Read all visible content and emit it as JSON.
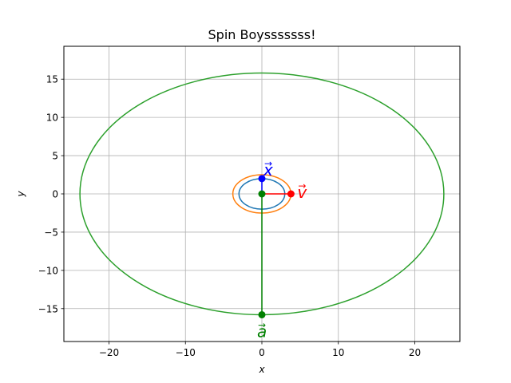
{
  "chart_data": {
    "type": "line",
    "title": "Spin Boysssssss!",
    "xlabel": "x",
    "ylabel": "y",
    "xlim": [
      -25.9,
      25.9
    ],
    "ylim": [
      -19.3,
      19.3
    ],
    "xticks": [
      -20,
      -10,
      0,
      10,
      20
    ],
    "yticks": [
      -15,
      -10,
      -5,
      0,
      5,
      10,
      15
    ],
    "xtick_labels": [
      "−20",
      "−10",
      "0",
      "10",
      "20"
    ],
    "ytick_labels": [
      "−15",
      "−10",
      "−5",
      "0",
      "5",
      "10",
      "15"
    ],
    "grid": true,
    "ellipses": [
      {
        "cx": 0,
        "cy": 0,
        "rx": 3.0,
        "ry": 2.0,
        "color": "#1f77b4"
      },
      {
        "cx": 0,
        "cy": 0,
        "rx": 3.8,
        "ry": 2.5,
        "color": "#ff7f0e"
      },
      {
        "cx": 0,
        "cy": 0,
        "rx": 23.8,
        "ry": 15.8,
        "color": "#2ca02c"
      }
    ],
    "vectors": [
      {
        "label": "x",
        "from": [
          0,
          0
        ],
        "to": [
          0,
          2.0
        ],
        "color": "#0000ff",
        "label_anchor": "start"
      },
      {
        "label": "v",
        "from": [
          0,
          0
        ],
        "to": [
          3.8,
          0
        ],
        "color": "#ff0000",
        "label_anchor": "start"
      },
      {
        "label": "a",
        "from": [
          0,
          0
        ],
        "to": [
          0,
          -15.8
        ],
        "color": "#008000",
        "label_anchor": "middle"
      }
    ],
    "center_point": {
      "x": 0,
      "y": 0,
      "color": "#008000"
    }
  }
}
